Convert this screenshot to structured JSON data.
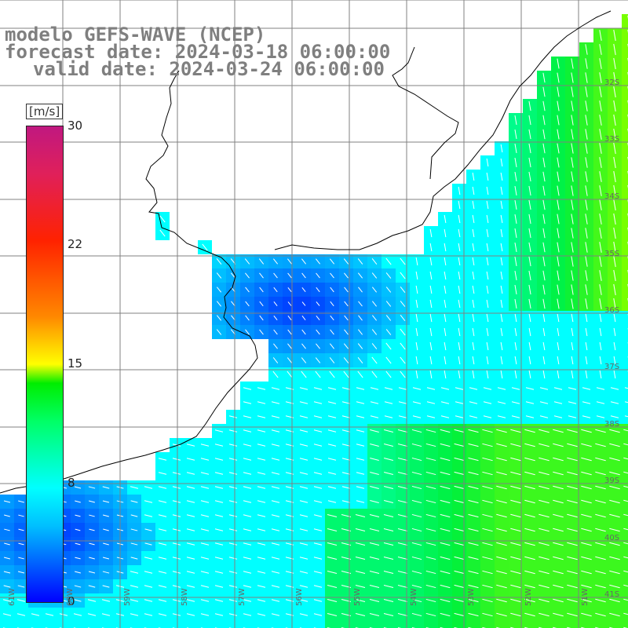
{
  "title": {
    "line1": "modelo GEFS-WAVE (NCEP)",
    "line2": "forecast date: 2024-03-18 06:00:00",
    "line3": "valid date: 2024-03-24 06:00:00"
  },
  "colorbar": {
    "unit": "[m/s]",
    "ticks": [
      "30",
      "22",
      "15",
      "8",
      "0"
    ],
    "colors": [
      "#0000ff",
      "#00bfff",
      "#00ffff",
      "#00ff66",
      "#00ee00",
      "#ffff00",
      "#ff8800",
      "#ff2200",
      "#c01880"
    ]
  },
  "lat_labels": [
    "32S",
    "33S",
    "34S",
    "35S",
    "36S",
    "37S",
    "38S",
    "39S",
    "40S",
    "41S"
  ],
  "lon_labels": [
    "61W",
    "60W",
    "59W",
    "58W",
    "57W",
    "56W",
    "55W",
    "54W",
    "53W",
    "52W",
    "51W"
  ],
  "field_colors": {
    "land": "#ffffff",
    "grid": "#808080",
    "coast": "#000000",
    "arrow": "#ffffff"
  }
}
